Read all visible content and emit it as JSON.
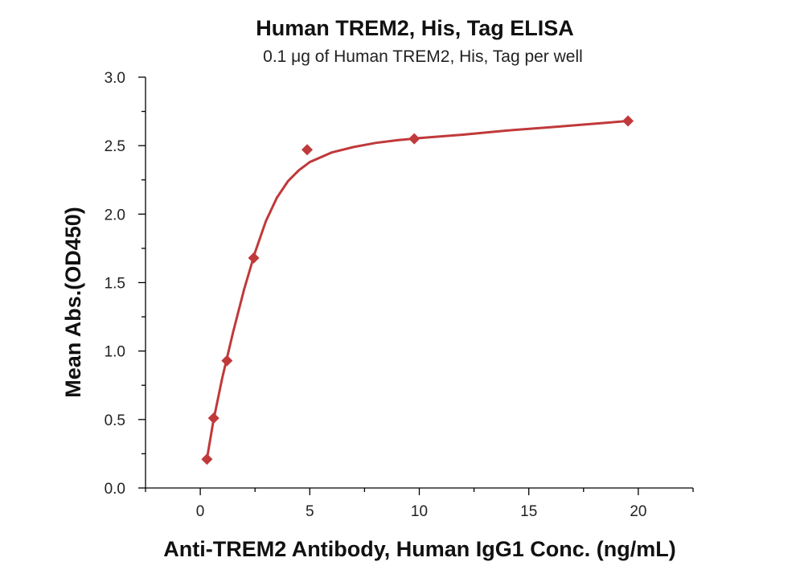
{
  "chart_data": {
    "type": "scatter",
    "title": "Human TREM2, His, Tag ELISA",
    "subtitle": "0.1 μg of Human TREM2, His, Tag per well",
    "xlabel": "Anti-TREM2 Antibody, Human IgG1 Conc. (ng/mL)",
    "ylabel": "Mean Abs.(OD450)",
    "xlim": [
      -2.5,
      22.5
    ],
    "ylim": [
      0,
      3.0
    ],
    "x_ticks": [
      0,
      5,
      10,
      15,
      20
    ],
    "x_tick_labels": [
      "0",
      "5",
      "10",
      "15",
      "20"
    ],
    "y_ticks": [
      0,
      0.5,
      1.0,
      1.5,
      2.0,
      2.5,
      3.0
    ],
    "y_tick_labels": [
      "0.0",
      "0.5",
      "1.0",
      "1.5",
      "2.0",
      "2.5",
      "3.0"
    ],
    "grid": false,
    "legend": "none",
    "color": "#c0393b",
    "series": [
      {
        "points": [
          {
            "x": 0.305,
            "y": 0.21
          },
          {
            "x": 0.61,
            "y": 0.51
          },
          {
            "x": 1.22,
            "y": 0.93
          },
          {
            "x": 2.44,
            "y": 1.68
          },
          {
            "x": 4.88,
            "y": 2.47
          },
          {
            "x": 9.77,
            "y": 2.55
          },
          {
            "x": 19.53,
            "y": 2.68
          }
        ],
        "fit_curve": [
          [
            0.3,
            0.21
          ],
          [
            0.6,
            0.49
          ],
          [
            1.0,
            0.8
          ],
          [
            1.5,
            1.14
          ],
          [
            2.0,
            1.45
          ],
          [
            2.5,
            1.72
          ],
          [
            3.0,
            1.95
          ],
          [
            3.5,
            2.12
          ],
          [
            4.0,
            2.24
          ],
          [
            4.5,
            2.32
          ],
          [
            5.0,
            2.38
          ],
          [
            6.0,
            2.45
          ],
          [
            7.0,
            2.49
          ],
          [
            8.0,
            2.52
          ],
          [
            9.0,
            2.54
          ],
          [
            10.0,
            2.555
          ],
          [
            12.0,
            2.58
          ],
          [
            14.0,
            2.61
          ],
          [
            16.0,
            2.635
          ],
          [
            18.0,
            2.66
          ],
          [
            19.53,
            2.68
          ]
        ]
      }
    ]
  }
}
